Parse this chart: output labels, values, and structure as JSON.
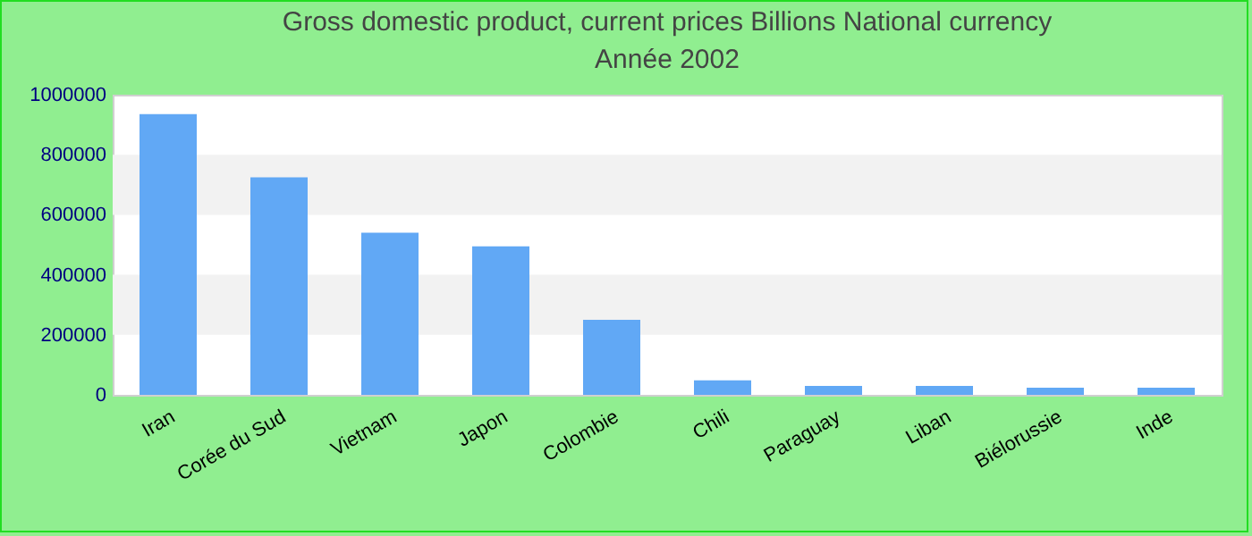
{
  "chart_data": {
    "type": "bar",
    "title": "Gross domestic product, current prices Billions National currency",
    "subtitle": "Année 2002",
    "categories": [
      "Iran",
      "Corée du Sud",
      "Vietnam",
      "Japon",
      "Colombie",
      "Chili",
      "Paraguay",
      "Liban",
      "Biélorussie",
      "Inde"
    ],
    "values": [
      935000,
      725000,
      540000,
      495000,
      250000,
      48000,
      30000,
      30000,
      24000,
      24000
    ],
    "color": "#61a8f5",
    "ylim": [
      0,
      1000000
    ],
    "yticks": [
      0,
      200000,
      400000,
      600000,
      800000,
      1000000
    ],
    "bands": [
      {
        "axis": "y",
        "from": 200000,
        "to": 400000,
        "color": "#f2f2f2"
      },
      {
        "axis": "y",
        "from": 600000,
        "to": 800000,
        "color": "#f2f2f2"
      }
    ]
  }
}
